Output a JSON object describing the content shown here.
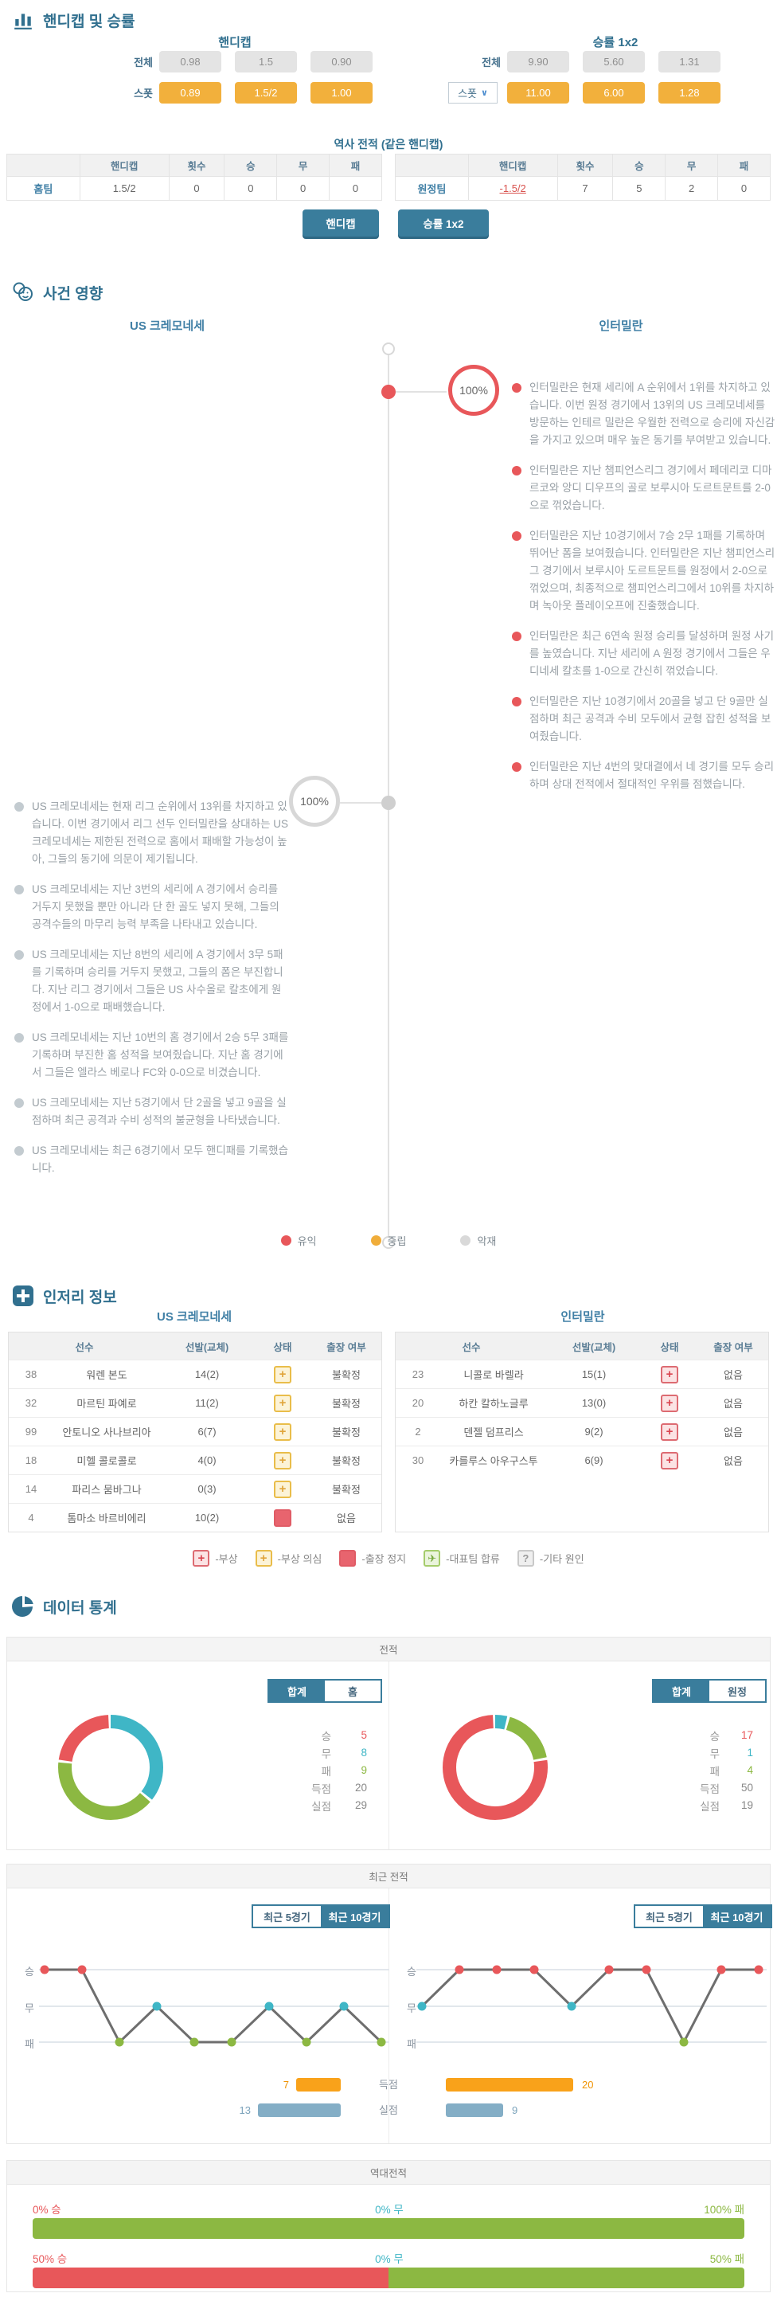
{
  "colors": {
    "accent": "#31708f",
    "teal_button": "#3a7d9c",
    "link_blue": "#4180a6",
    "orange_box": "#f2b03c",
    "gray_box": "#e4e4e4",
    "win_red": "#e8575a",
    "draw_teal": "#3fb6c6",
    "loss_green": "#8cb842",
    "bar_orange": "#f9a21a",
    "bar_blue": "#84aec6",
    "neutral_orange": "#f0ad3a",
    "negative_gray": "#d9d9d9"
  },
  "odds": {
    "title": "핸디캡 및 승률",
    "handicap": {
      "title": "핸디캡",
      "row_all": {
        "label": "전체",
        "values": [
          "0.98",
          "1.5",
          "0.90"
        ]
      },
      "row_spot": {
        "label": "스폿",
        "values": [
          "0.89",
          "1.5/2",
          "1.00"
        ]
      }
    },
    "winrate": {
      "title": "승률 1x2",
      "row_all": {
        "label": "전체",
        "values": [
          "9.90",
          "5.60",
          "1.31"
        ]
      },
      "row_spot": {
        "label": "스폿",
        "values": [
          "11.00",
          "6.00",
          "1.28"
        ]
      }
    },
    "history": {
      "title": "역사 전적 (같은 핸디캡)",
      "headers": [
        "핸디캡",
        "횟수",
        "승",
        "무",
        "패"
      ],
      "rows": [
        {
          "team": "홈팀",
          "handicap": "1.5/2",
          "count": "0",
          "win": "0",
          "draw": "0",
          "loss": "0"
        },
        {
          "team": "원정팀",
          "handicap": "-1.5/2",
          "count": "7",
          "win": "5",
          "draw": "2",
          "loss": "0"
        }
      ]
    },
    "buttons": [
      "핸디캡",
      "승률 1x2"
    ]
  },
  "events": {
    "title": "사건 영향",
    "home_team": "US 크레모네세",
    "away_team": "인터밀란",
    "away_pct": "100%",
    "home_pct": "100%",
    "away_notes": [
      "인터밀란은 현재 세리에 A 순위에서 1위를 차지하고 있습니다. 이번 원정 경기에서 13위의 US 크레모네세를 방문하는 인테르 밀란은 우월한 전력으로 승리에 자신감을 가지고 있으며 매우 높은 동기를 부여받고 있습니다.",
      "인터밀란은 지난 챔피언스리그 경기에서 페데리코 디마르코와 앙디 디우프의 골로 보루시아 도르트문트를 2-0으로 꺾었습니다.",
      "인터밀란은 지난 10경기에서 7승 2무 1패를 기록하며 뛰어난 폼을 보여줬습니다. 인터밀란은 지난 챔피언스리그 경기에서 보루시아 도르트문트를 원정에서 2-0으로 꺾었으며, 최종적으로 챔피언스리그에서 10위를 차지하며 녹아웃 플레이오프에 진출했습니다.",
      "인터밀란은 최근 6연속 원정 승리를 달성하며 원정 사기를 높였습니다. 지난 세리에 A 원정 경기에서 그들은 우디네세 칼초를 1-0으로 간신히 꺾었습니다.",
      "인터밀란은 지난 10경기에서 20골을 넣고 단 9골만 실점하며 최근 공격과 수비 모두에서 균형 잡힌 성적을 보여줬습니다.",
      "인터밀란은 지난 4번의 맞대결에서 네 경기를 모두 승리하며 상대 전적에서 절대적인 우위를 점했습니다."
    ],
    "home_notes": [
      "US 크레모네세는 현재 리그 순위에서 13위를 차지하고 있습니다. 이번 경기에서 리그 선두 인터밀란을 상대하는 US 크레모네세는 제한된 전력으로 홈에서 패배할 가능성이 높아, 그들의 동기에 의문이 제기됩니다.",
      "US 크레모네세는 지난 3번의 세리에 A 경기에서 승리를 거두지 못했을 뿐만 아니라 단 한 골도 넣지 못해, 그들의 공격수들의 마무리 능력 부족을 나타내고 있습니다.",
      "US 크레모네세는 지난 8번의 세리에 A 경기에서 3무 5패를 기록하며 승리를 거두지 못했고, 그들의 폼은 부진합니다. 지난 리그 경기에서 그들은 US 사수올로 칼초에게 원정에서 1-0으로 패배했습니다.",
      "US 크레모네세는 지난 10번의 홈 경기에서 2승 5무 3패를 기록하며 부진한 홈 성적을 보여줬습니다. 지난 홈 경기에서 그들은 엘라스 베로나 FC와 0-0으로 비겼습니다.",
      "US 크레모네세는 지난 5경기에서 단 2골을 넣고 9골을 실점하며 최근 공격과 수비 성적의 불균형을 나타냈습니다.",
      "US 크레모네세는 최근 6경기에서 모두 핸디패를 기록했습니다."
    ],
    "legend": [
      {
        "label": "유익",
        "type": "positive"
      },
      {
        "label": "중립",
        "type": "neutral"
      },
      {
        "label": "악재",
        "type": "negative"
      }
    ]
  },
  "injury": {
    "title": "인저리 정보",
    "headers": [
      "선수",
      "선발(교체)",
      "상태",
      "출장 여부"
    ],
    "home": {
      "team": "US 크레모네세",
      "rows": [
        {
          "no": "38",
          "name": "워렌 본도",
          "apps": "14(2)",
          "status": "doubt",
          "avail": "불확정"
        },
        {
          "no": "32",
          "name": "마르틴 파예로",
          "apps": "11(2)",
          "status": "doubt",
          "avail": "불확정"
        },
        {
          "no": "99",
          "name": "안토니오 사나브리아",
          "apps": "6(7)",
          "status": "doubt",
          "avail": "불확정"
        },
        {
          "no": "18",
          "name": "미헬 콜로콜로",
          "apps": "4(0)",
          "status": "doubt",
          "avail": "불확정"
        },
        {
          "no": "14",
          "name": "파리스 뭄바그나",
          "apps": "0(3)",
          "status": "doubt",
          "avail": "불확정"
        },
        {
          "no": "4",
          "name": "톰마소 바르비에리",
          "apps": "10(2)",
          "status": "suspended",
          "avail": "없음"
        }
      ]
    },
    "away": {
      "team": "인터밀란",
      "rows": [
        {
          "no": "23",
          "name": "니콜로 바렐라",
          "apps": "15(1)",
          "status": "injury",
          "avail": "없음"
        },
        {
          "no": "20",
          "name": "하칸 칼하노글루",
          "apps": "13(0)",
          "status": "injury",
          "avail": "없음"
        },
        {
          "no": "2",
          "name": "덴젤 덤프리스",
          "apps": "9(2)",
          "status": "injury",
          "avail": "없음"
        },
        {
          "no": "30",
          "name": "카를루스 아우구스투",
          "apps": "6(9)",
          "status": "injury",
          "avail": "없음"
        }
      ]
    },
    "legend": [
      {
        "icon": "injury",
        "label": "-부상"
      },
      {
        "icon": "doubt",
        "label": "-부상 의심"
      },
      {
        "icon": "suspended",
        "label": "-출장 정지"
      },
      {
        "icon": "national",
        "label": "-대표팀 합류"
      },
      {
        "icon": "other",
        "label": "-기타 원인"
      }
    ]
  },
  "stats": {
    "title": "데이터 통계",
    "record": {
      "panel_title": "전적",
      "home": {
        "tabs": [
          "합계",
          "홈"
        ],
        "active": 0,
        "stats": [
          {
            "label": "승",
            "value": "5",
            "color": "win"
          },
          {
            "label": "무",
            "value": "8",
            "color": "draw"
          },
          {
            "label": "패",
            "value": "9",
            "color": "loss"
          },
          {
            "label": "득점",
            "value": "20",
            "color": "plain"
          },
          {
            "label": "실점",
            "value": "29",
            "color": "plain"
          }
        ],
        "donut": [
          {
            "type": "draw",
            "value": 8
          },
          {
            "type": "loss",
            "value": 9
          },
          {
            "type": "win",
            "value": 5
          }
        ]
      },
      "away": {
        "tabs": [
          "합계",
          "원정"
        ],
        "active": 0,
        "stats": [
          {
            "label": "승",
            "value": "17",
            "color": "win"
          },
          {
            "label": "무",
            "value": "1",
            "color": "draw"
          },
          {
            "label": "패",
            "value": "4",
            "color": "loss"
          },
          {
            "label": "득점",
            "value": "50",
            "color": "plain"
          },
          {
            "label": "실점",
            "value": "19",
            "color": "plain"
          }
        ],
        "donut": [
          {
            "type": "draw",
            "value": 1
          },
          {
            "type": "loss",
            "value": 4
          },
          {
            "type": "win",
            "value": 17
          }
        ]
      }
    },
    "recent": {
      "panel_title": "최근 전적",
      "tabs": [
        "최근 5경기",
        "최근 10경기"
      ],
      "active_tab": 1,
      "ylabels": [
        "승",
        "무",
        "패"
      ],
      "bar_labels": [
        "득점",
        "실점"
      ],
      "home": {
        "results": [
          "W",
          "W",
          "L",
          "D",
          "L",
          "L",
          "D",
          "L",
          "D",
          "L"
        ],
        "scored": 7,
        "conceded": 13
      },
      "away": {
        "results": [
          "D",
          "W",
          "W",
          "W",
          "D",
          "W",
          "W",
          "L",
          "W",
          "W"
        ],
        "scored": 20,
        "conceded": 9
      }
    },
    "h2h": {
      "panel_title": "역대전적",
      "rows": [
        {
          "win": "0% 승",
          "draw": "0% 무",
          "loss": "100% 패",
          "win_pct": 0,
          "loss_pct": 100
        },
        {
          "win": "50% 승",
          "draw": "0% 무",
          "loss": "50% 패",
          "win_pct": 50,
          "loss_pct": 50
        }
      ]
    }
  },
  "chart_data": [
    {
      "type": "pie",
      "title": "전적 - US 크레모네세 (합계)",
      "labels": [
        "승",
        "무",
        "패"
      ],
      "values": [
        5,
        8,
        9
      ],
      "extra": {
        "득점": 20,
        "실점": 29
      },
      "colors": [
        "#e8575a",
        "#3fb6c6",
        "#8cb842"
      ]
    },
    {
      "type": "pie",
      "title": "전적 - 인터밀란 (합계)",
      "labels": [
        "승",
        "무",
        "패"
      ],
      "values": [
        17,
        1,
        4
      ],
      "extra": {
        "득점": 50,
        "실점": 19
      },
      "colors": [
        "#e8575a",
        "#3fb6c6",
        "#8cb842"
      ]
    },
    {
      "type": "line",
      "title": "최근 10경기 - US 크레모네세",
      "x": [
        1,
        2,
        3,
        4,
        5,
        6,
        7,
        8,
        9,
        10
      ],
      "values": [
        "승",
        "승",
        "패",
        "무",
        "패",
        "패",
        "무",
        "패",
        "무",
        "패"
      ],
      "ylabels": [
        "승",
        "무",
        "패"
      ],
      "scored": 7,
      "conceded": 13
    },
    {
      "type": "line",
      "title": "최근 10경기 - 인터밀란",
      "x": [
        1,
        2,
        3,
        4,
        5,
        6,
        7,
        8,
        9,
        10
      ],
      "values": [
        "무",
        "승",
        "승",
        "승",
        "무",
        "승",
        "승",
        "패",
        "승",
        "승"
      ],
      "ylabels": [
        "승",
        "무",
        "패"
      ],
      "scored": 20,
      "conceded": 9
    },
    {
      "type": "bar",
      "title": "역대전적",
      "rows": [
        {
          "승": 0,
          "무": 0,
          "패": 100
        },
        {
          "승": 50,
          "무": 0,
          "패": 50
        }
      ],
      "unit": "%"
    }
  ]
}
